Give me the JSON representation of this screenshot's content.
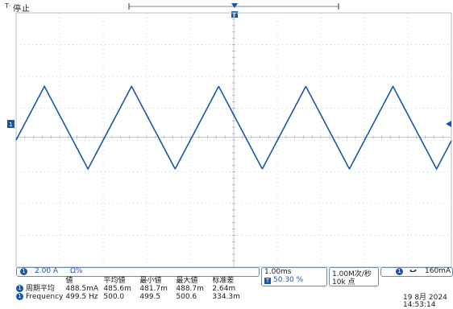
{
  "status": {
    "run_state": "停止",
    "trigger_position_icon": "trigger-position-icon"
  },
  "channel": {
    "number": "1",
    "scale": "2.00 A",
    "coupling": "Ω%",
    "color": "#1a56a8"
  },
  "waveform": {
    "type": "triangle",
    "frequency_hz": 499.5,
    "peak_high_div": 1.6,
    "peak_low_div": -1.0,
    "timebase_ms_per_div": 1.0,
    "start_phase_note": "rising"
  },
  "measurements": {
    "headers": [
      "値",
      "平均値",
      "最小値",
      "最大値",
      "标准差"
    ],
    "rows": [
      {
        "label": "周期平均",
        "values": [
          "488.5mA",
          "485.6m",
          "481.7m",
          "488.7m",
          "2.64m"
        ]
      },
      {
        "label": "Frequency",
        "values": [
          "499.5 Hz",
          "500.0",
          "499.5",
          "500.6",
          "334.3m"
        ]
      }
    ]
  },
  "horizontal": {
    "timebase": "1.00ms",
    "position": "50.30 %",
    "sample_rate": "1.00M次/秒",
    "record_length": "10k 点"
  },
  "trigger": {
    "channel": "1",
    "slope_icon": "falling-edge-icon",
    "level": "160mA"
  },
  "datetime": {
    "date": "19 8月  2024",
    "time": "14:53:14"
  }
}
